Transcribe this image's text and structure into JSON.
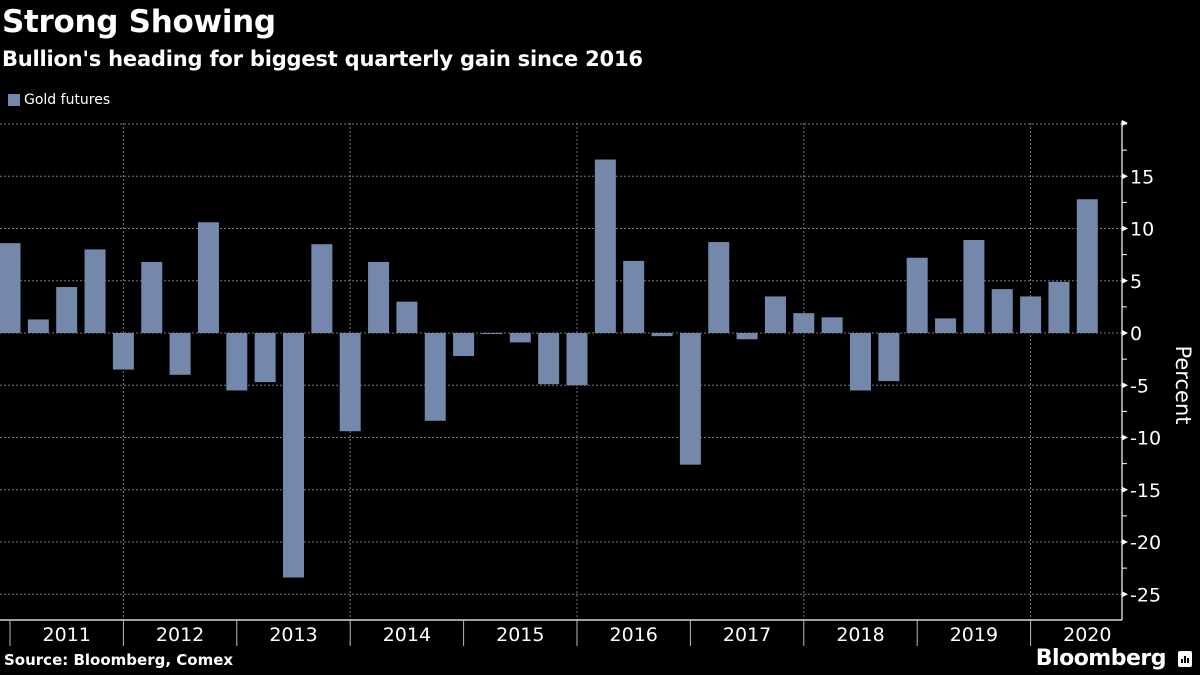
{
  "header": {
    "title": "Strong Showing",
    "subtitle": "Bullion's heading for biggest quarterly gain since 2016"
  },
  "legend": {
    "label": "Gold futures",
    "color": "#7388ab"
  },
  "footer": {
    "source": "Source: Bloomberg, Comex",
    "brand": "Bloomberg",
    "brand_icon": "bloomberg-chart-icon"
  },
  "colors": {
    "background": "#000000",
    "bar": "#7388ab",
    "grid": "#777777",
    "axis": "#ffffff"
  },
  "chart_data": {
    "type": "bar",
    "title": "Strong Showing",
    "subtitle": "Bullion's heading for biggest quarterly gain since 2016",
    "xlabel": "",
    "ylabel": "Percent",
    "ylim": [
      -27,
      20
    ],
    "yticks": [
      15,
      10,
      5,
      0,
      -5,
      -10,
      -15,
      -20,
      -25
    ],
    "grid": true,
    "legend_position": "top-left",
    "y_axis_side": "right",
    "year_labels": [
      "2011",
      "2012",
      "2013",
      "2014",
      "2015",
      "2016",
      "2017",
      "2018",
      "2019",
      "2020"
    ],
    "categories": [
      "2011 Q1",
      "2011 Q2",
      "2011 Q3",
      "2011 Q4",
      "2012 Q1",
      "2012 Q2",
      "2012 Q3",
      "2012 Q4",
      "2013 Q1",
      "2013 Q2",
      "2013 Q3",
      "2013 Q4",
      "2014 Q1",
      "2014 Q2",
      "2014 Q3",
      "2014 Q4",
      "2015 Q1",
      "2015 Q2",
      "2015 Q3",
      "2015 Q4",
      "2016 Q1",
      "2016 Q2",
      "2016 Q3",
      "2016 Q4",
      "2017 Q1",
      "2017 Q2",
      "2017 Q3",
      "2017 Q4",
      "2018 Q1",
      "2018 Q2",
      "2018 Q3",
      "2018 Q4",
      "2019 Q1",
      "2019 Q2",
      "2019 Q3",
      "2019 Q4",
      "2020 Q1",
      "2020 Q2",
      "2020 Q3"
    ],
    "series": [
      {
        "name": "Gold futures",
        "values": [
          8.6,
          1.3,
          4.4,
          8.0,
          -3.5,
          6.8,
          -4.0,
          10.6,
          -5.5,
          -4.7,
          -23.4,
          8.5,
          -9.4,
          6.8,
          3.0,
          -8.4,
          -2.2,
          -0.1,
          -0.9,
          -4.9,
          -5.0,
          16.6,
          6.9,
          -0.3,
          -12.6,
          8.7,
          -0.6,
          3.5,
          1.9,
          1.5,
          -5.5,
          -4.6,
          7.2,
          1.4,
          8.9,
          4.2,
          3.5,
          4.9,
          12.8
        ]
      }
    ]
  }
}
